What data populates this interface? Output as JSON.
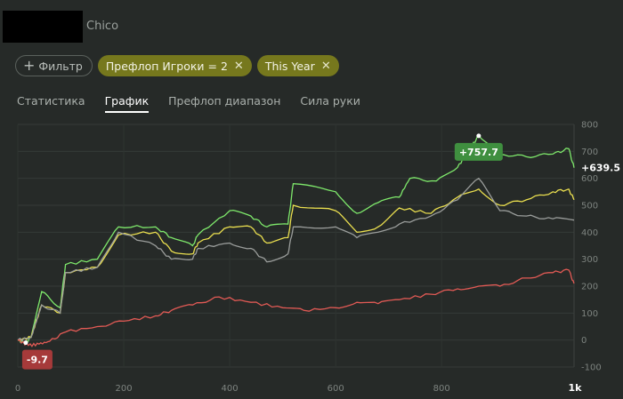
{
  "header": {
    "player_name": "Chico"
  },
  "filters": [
    {
      "label": "Фильтр",
      "icon": "plus-icon",
      "style": "outline"
    },
    {
      "label": "Префлоп Игроки = 2",
      "removable": true,
      "style": "olive"
    },
    {
      "label": "This Year",
      "removable": true,
      "style": "olive"
    }
  ],
  "tabs": [
    {
      "label": "Статистика",
      "active": false
    },
    {
      "label": "График",
      "active": true
    },
    {
      "label": "Префлоп диапазон",
      "active": false
    },
    {
      "label": "Сила руки",
      "active": false
    }
  ],
  "colors": {
    "background": "#262a28",
    "green_series": "#7ee86b",
    "yellow_series": "#eadf4f",
    "gray_series": "#9a9d9b",
    "red_series": "#e25a55",
    "max_badge": "#3f8f3f",
    "min_badge": "#a63a3a"
  },
  "chart_data": {
    "type": "line",
    "xlim": [
      0,
      1050
    ],
    "ylim": [
      -100,
      800
    ],
    "x_ticks": [
      0,
      200,
      400,
      600,
      800
    ],
    "x_tick_labels": [
      "0",
      "200",
      "400",
      "600",
      "800"
    ],
    "x_end_label": "1k",
    "y_ticks": [
      -100,
      0,
      100,
      200,
      300,
      400,
      500,
      600,
      700,
      800
    ],
    "y_tick_labels": [
      "-100",
      "0",
      "100",
      "200",
      "300",
      "400",
      "500",
      "600",
      "700",
      "800"
    ],
    "annotations": {
      "max_label": "+757.7",
      "max_value": 757.7,
      "max_x": 870,
      "min_label": "-9.7",
      "min_value": -9.7,
      "min_x": 15,
      "final_label": "+639.5",
      "final_value": 639.5
    },
    "series": [
      {
        "color": "#7ee86b",
        "points": [
          [
            0,
            0
          ],
          [
            15,
            -9.7
          ],
          [
            25,
            10
          ],
          [
            45,
            180
          ],
          [
            80,
            120
          ],
          [
            90,
            280
          ],
          [
            150,
            300
          ],
          [
            190,
            420
          ],
          [
            260,
            420
          ],
          [
            290,
            380
          ],
          [
            330,
            350
          ],
          [
            340,
            390
          ],
          [
            400,
            480
          ],
          [
            440,
            460
          ],
          [
            470,
            420
          ],
          [
            510,
            430
          ],
          [
            520,
            580
          ],
          [
            600,
            550
          ],
          [
            640,
            470
          ],
          [
            680,
            510
          ],
          [
            720,
            530
          ],
          [
            740,
            600
          ],
          [
            790,
            590
          ],
          [
            830,
            640
          ],
          [
            850,
            700
          ],
          [
            870,
            757.7
          ],
          [
            910,
            690
          ],
          [
            960,
            680
          ],
          [
            1010,
            690
          ],
          [
            1040,
            710
          ],
          [
            1050,
            639.5
          ]
        ]
      },
      {
        "color": "#eadf4f",
        "points": [
          [
            0,
            0
          ],
          [
            25,
            10
          ],
          [
            45,
            130
          ],
          [
            80,
            100
          ],
          [
            90,
            250
          ],
          [
            150,
            270
          ],
          [
            190,
            390
          ],
          [
            260,
            400
          ],
          [
            290,
            330
          ],
          [
            330,
            320
          ],
          [
            340,
            360
          ],
          [
            400,
            420
          ],
          [
            440,
            420
          ],
          [
            470,
            360
          ],
          [
            510,
            380
          ],
          [
            520,
            500
          ],
          [
            600,
            480
          ],
          [
            640,
            400
          ],
          [
            680,
            420
          ],
          [
            720,
            490
          ],
          [
            780,
            470
          ],
          [
            830,
            530
          ],
          [
            870,
            560
          ],
          [
            910,
            500
          ],
          [
            960,
            520
          ],
          [
            1010,
            550
          ],
          [
            1040,
            560
          ],
          [
            1050,
            520
          ]
        ]
      },
      {
        "color": "#9a9d9b",
        "points": [
          [
            0,
            0
          ],
          [
            25,
            10
          ],
          [
            45,
            130
          ],
          [
            80,
            100
          ],
          [
            90,
            250
          ],
          [
            150,
            270
          ],
          [
            190,
            400
          ],
          [
            260,
            350
          ],
          [
            290,
            300
          ],
          [
            330,
            300
          ],
          [
            340,
            340
          ],
          [
            400,
            360
          ],
          [
            440,
            340
          ],
          [
            470,
            290
          ],
          [
            510,
            320
          ],
          [
            520,
            420
          ],
          [
            600,
            420
          ],
          [
            640,
            380
          ],
          [
            680,
            400
          ],
          [
            720,
            430
          ],
          [
            780,
            460
          ],
          [
            830,
            520
          ],
          [
            870,
            600
          ],
          [
            910,
            480
          ],
          [
            960,
            460
          ],
          [
            1010,
            450
          ],
          [
            1050,
            445
          ]
        ]
      },
      {
        "color": "#e25a55",
        "points": [
          [
            0,
            0
          ],
          [
            20,
            -20
          ],
          [
            40,
            -15
          ],
          [
            60,
            -5
          ],
          [
            90,
            30
          ],
          [
            150,
            50
          ],
          [
            200,
            70
          ],
          [
            260,
            90
          ],
          [
            290,
            110
          ],
          [
            330,
            130
          ],
          [
            380,
            160
          ],
          [
            440,
            140
          ],
          [
            500,
            120
          ],
          [
            540,
            110
          ],
          [
            600,
            120
          ],
          [
            640,
            140
          ],
          [
            680,
            135
          ],
          [
            720,
            150
          ],
          [
            780,
            170
          ],
          [
            830,
            190
          ],
          [
            870,
            200
          ],
          [
            910,
            200
          ],
          [
            960,
            230
          ],
          [
            1010,
            250
          ],
          [
            1040,
            260
          ],
          [
            1050,
            210
          ]
        ]
      }
    ]
  }
}
